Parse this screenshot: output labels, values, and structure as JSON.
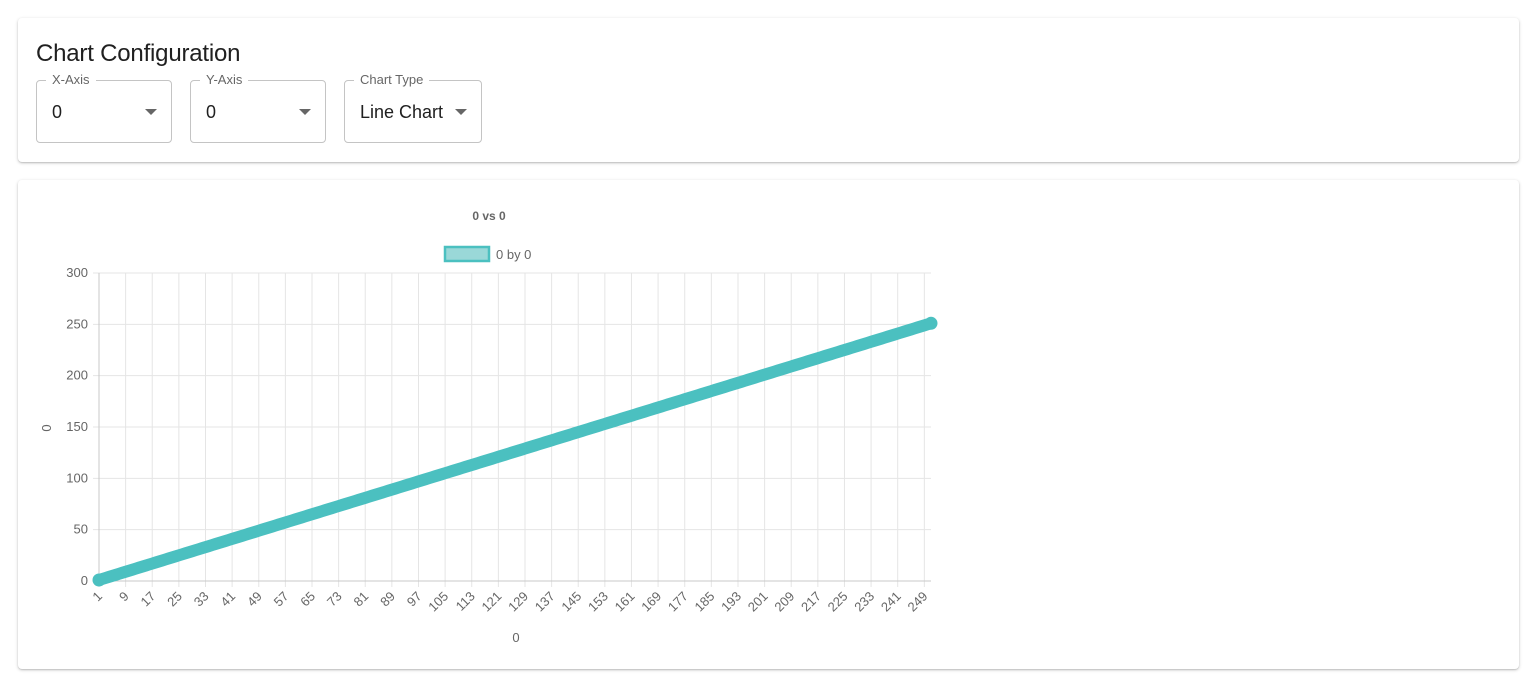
{
  "config": {
    "title": "Chart Configuration",
    "x_axis": {
      "label": "X-Axis",
      "value": "0"
    },
    "y_axis": {
      "label": "Y-Axis",
      "value": "0"
    },
    "chart_type": {
      "label": "Chart Type",
      "value": "Line Chart"
    }
  },
  "chart_data": {
    "type": "line",
    "title": "0 vs 0",
    "xlabel": "0",
    "ylabel": "0",
    "legend": "top",
    "grid": true,
    "x_range": [
      1,
      251
    ],
    "x_tick_labels": [
      "1",
      "9",
      "17",
      "25",
      "33",
      "41",
      "49",
      "57",
      "65",
      "73",
      "81",
      "89",
      "97",
      "105",
      "113",
      "121",
      "129",
      "137",
      "145",
      "153",
      "161",
      "169",
      "177",
      "185",
      "193",
      "201",
      "209",
      "217",
      "225",
      "233",
      "241",
      "249"
    ],
    "ylim": [
      0,
      300
    ],
    "y_ticks": [
      0,
      50,
      100,
      150,
      200,
      250,
      300
    ],
    "series": [
      {
        "name": "0 by 0",
        "x_start": 1,
        "x_end": 251,
        "y_start": 1,
        "y_end": 251,
        "relation": "y = x"
      }
    ],
    "colors": {
      "line": "#4bc0c0",
      "legend_fill": "#9ad8d8",
      "grid": "#e5e5e5",
      "axis": "#c9c9c9"
    }
  }
}
